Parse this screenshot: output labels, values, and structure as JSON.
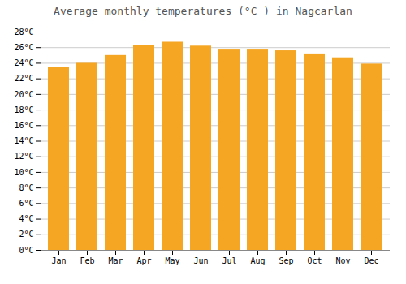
{
  "chart_data": {
    "type": "bar",
    "title": "Average monthly temperatures (°C ) in Nagcarlan",
    "categories": [
      "Jan",
      "Feb",
      "Mar",
      "Apr",
      "May",
      "Jun",
      "Jul",
      "Aug",
      "Sep",
      "Oct",
      "Nov",
      "Dec"
    ],
    "values": [
      23.5,
      24.0,
      25.0,
      26.3,
      26.7,
      26.2,
      25.7,
      25.7,
      25.6,
      25.2,
      24.7,
      23.9
    ],
    "color": "#F5A623",
    "ylim": [
      0,
      28
    ],
    "yticks": [
      {
        "value": 0,
        "label": "0°C"
      },
      {
        "value": 2,
        "label": "2°C"
      },
      {
        "value": 4,
        "label": "4°C"
      },
      {
        "value": 6,
        "label": "6°C"
      },
      {
        "value": 8,
        "label": "8°C"
      },
      {
        "value": 10,
        "label": "10°C"
      },
      {
        "value": 12,
        "label": "12°C"
      },
      {
        "value": 14,
        "label": "14°C"
      },
      {
        "value": 16,
        "label": "16°C"
      },
      {
        "value": 18,
        "label": "18°C"
      },
      {
        "value": 20,
        "label": "20°C"
      },
      {
        "value": 22,
        "label": "22°C"
      },
      {
        "value": 24,
        "label": "24°C"
      },
      {
        "value": 26,
        "label": "26°C"
      },
      {
        "value": 28,
        "label": "28°C"
      }
    ],
    "grid": true
  }
}
